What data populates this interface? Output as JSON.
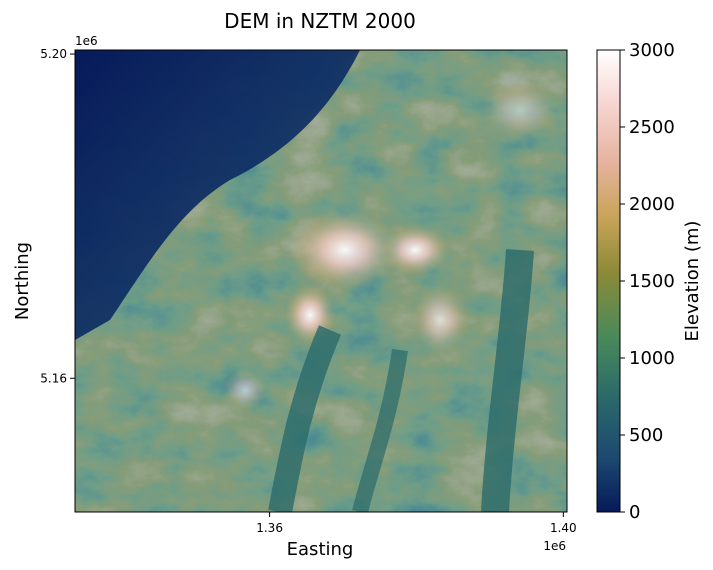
{
  "chart_data": {
    "type": "heatmap",
    "title": "DEM in NZTM 2000",
    "xlabel": "Easting",
    "ylabel": "Northing",
    "x_offset_label": "1e6",
    "y_offset_label": "1e6",
    "xlim": [
      1.3335,
      1.4005
    ],
    "ylim": [
      5.1435,
      5.2005
    ],
    "x_ticks": [
      {
        "value": 1.36,
        "label": "1.36"
      },
      {
        "value": 1.4,
        "label": "1.40"
      }
    ],
    "y_ticks": [
      {
        "value": 5.2,
        "label": "5.20"
      },
      {
        "value": 5.16,
        "label": "5.16"
      }
    ],
    "colorbar": {
      "label": "Elevation (m)",
      "range": [
        0,
        3000
      ],
      "ticks": [
        {
          "value": 0,
          "label": "0"
        },
        {
          "value": 500,
          "label": "500"
        },
        {
          "value": 1000,
          "label": "1000"
        },
        {
          "value": 1500,
          "label": "1500"
        },
        {
          "value": 2000,
          "label": "2000"
        },
        {
          "value": 2500,
          "label": "2500"
        },
        {
          "value": 3000,
          "label": "3000"
        }
      ],
      "colormap": "gist_earth-like",
      "stops": [
        "#061a5a",
        "#1d4a70",
        "#2b6a6a",
        "#4a8a5a",
        "#8c8a38",
        "#c9a45a",
        "#e6b4a0",
        "#f6d4d0",
        "#ffffff"
      ]
    },
    "grid": false
  }
}
